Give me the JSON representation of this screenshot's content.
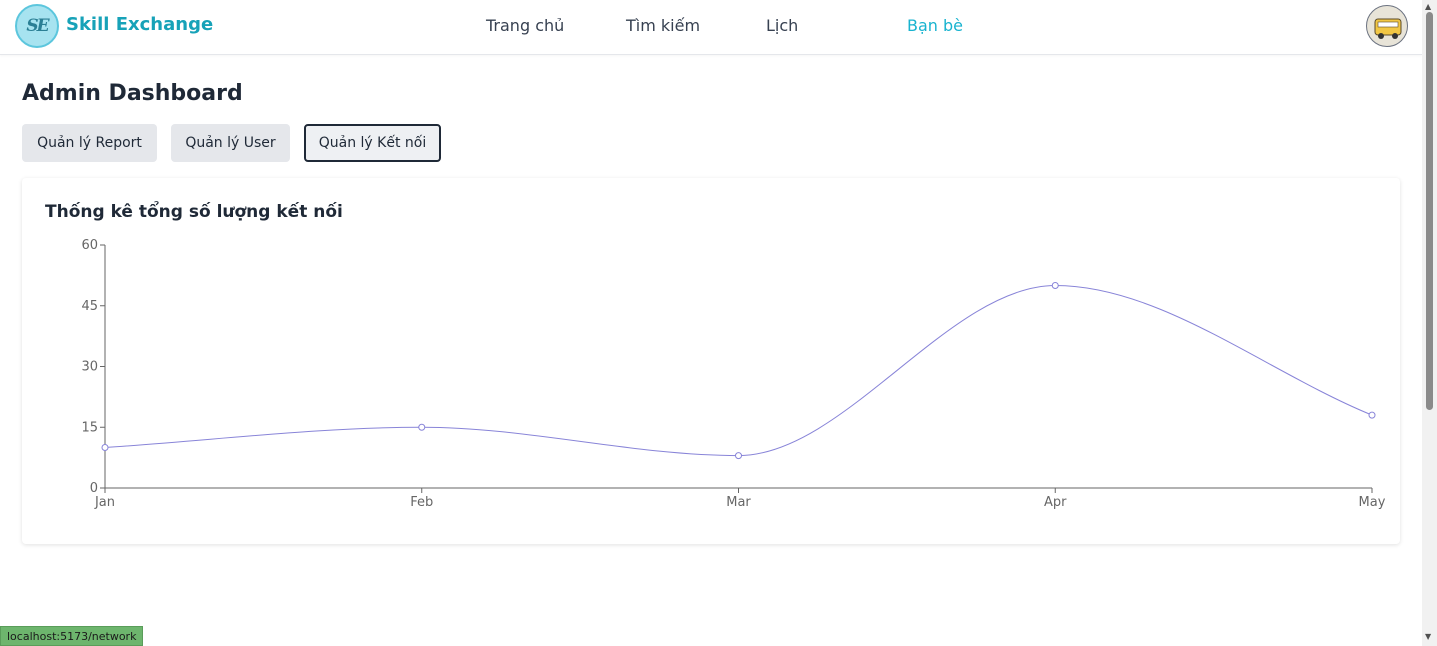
{
  "header": {
    "logo_text": "SE",
    "brand": "Skill Exchange",
    "nav": [
      {
        "label": "Trang chủ"
      },
      {
        "label": "Tìm kiếm"
      },
      {
        "label": "Lịch"
      },
      {
        "label": "Bạn bè",
        "active": true
      }
    ]
  },
  "main": {
    "title": "Admin Dashboard",
    "tabs": [
      {
        "label": "Quản lý Report"
      },
      {
        "label": "Quản lý User"
      },
      {
        "label": "Quản lý Kết nối",
        "active": true
      }
    ]
  },
  "chart_data": {
    "type": "line",
    "title": "Thống kê tổng số lượng kết nối",
    "categories": [
      "Jan",
      "Feb",
      "Mar",
      "Apr",
      "May"
    ],
    "series": [
      {
        "values": [
          10,
          15,
          8,
          50,
          18
        ],
        "color": "#8884d8"
      }
    ],
    "ylim": [
      0,
      60
    ],
    "yticks": [
      0,
      15,
      30,
      45,
      60
    ],
    "curve": "smooth",
    "grid": false,
    "legend": "none"
  },
  "status_bar": {
    "url": "localhost:5173/network"
  },
  "colors": {
    "accent": "#17a2b8",
    "line": "#8884d8"
  }
}
